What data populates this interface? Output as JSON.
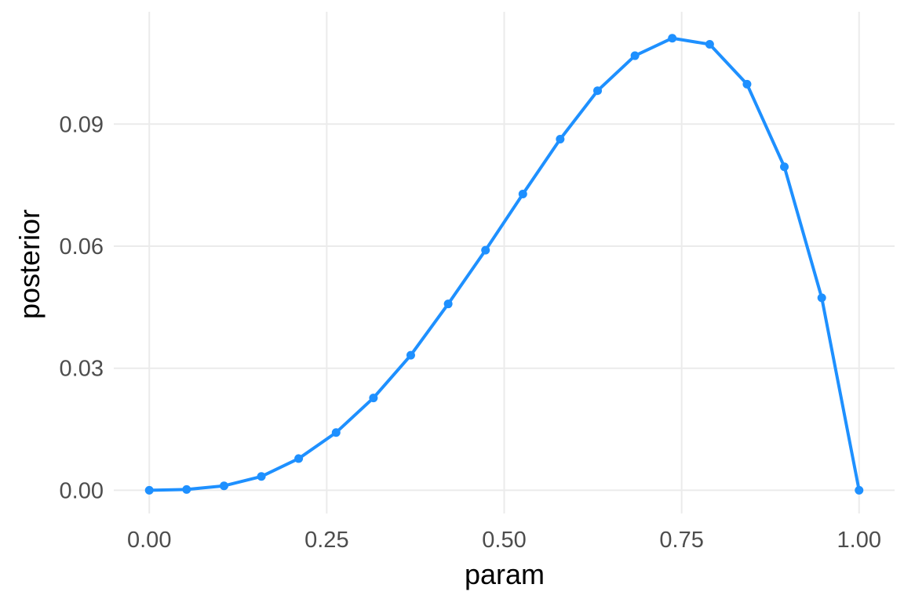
{
  "chart_data": {
    "type": "line",
    "title": "",
    "xlabel": "param",
    "ylabel": "posterior",
    "xlim": [
      -0.05,
      1.05
    ],
    "ylim": [
      -0.0057,
      0.1176
    ],
    "grid": true,
    "legend": "none",
    "x_ticks": [
      0,
      0.25,
      0.5,
      0.75,
      1
    ],
    "x_tick_labels": [
      "0.00",
      "0.25",
      "0.50",
      "0.75",
      "1.00"
    ],
    "y_ticks": [
      0,
      0.03,
      0.06,
      0.09
    ],
    "y_tick_labels": [
      "0.00",
      "0.03",
      "0.06",
      "0.09"
    ],
    "colors": {
      "series": "#1E90FF",
      "grid": "#EBEBEB",
      "tick_text": "#4D4D4D",
      "axis_title": "#000000"
    },
    "series": [
      {
        "x": [
          0.0,
          0.0526,
          0.1053,
          0.1579,
          0.2105,
          0.2632,
          0.3158,
          0.3684,
          0.4211,
          0.4737,
          0.5263,
          0.5789,
          0.6316,
          0.6842,
          0.7368,
          0.7895,
          0.8421,
          0.8947,
          0.9474,
          1.0
        ],
        "y": [
          0.0,
          0.0002,
          0.0011,
          0.0034,
          0.0078,
          0.0142,
          0.0227,
          0.0332,
          0.0458,
          0.059,
          0.0728,
          0.0863,
          0.0982,
          0.1068,
          0.1111,
          0.1096,
          0.0998,
          0.0795,
          0.0473,
          0.0
        ]
      }
    ]
  }
}
